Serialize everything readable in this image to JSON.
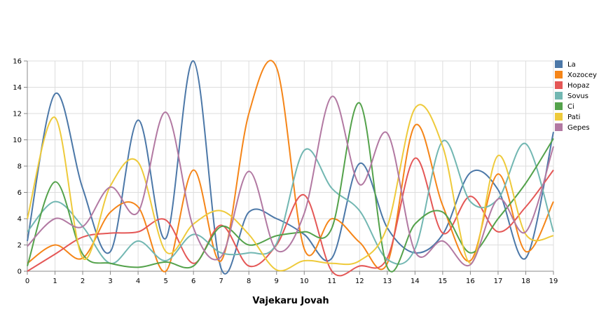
{
  "chart_data": {
    "type": "line",
    "title": "",
    "xlabel": "Vajekaru Jovah",
    "ylabel": "",
    "x": [
      0,
      1,
      2,
      3,
      4,
      5,
      6,
      7,
      8,
      9,
      10,
      11,
      12,
      13,
      14,
      15,
      16,
      17,
      18,
      19
    ],
    "xlim": [
      0,
      19
    ],
    "ylim": [
      0,
      16
    ],
    "xticks": [
      "0",
      "1",
      "2",
      "3",
      "4",
      "5",
      "6",
      "7",
      "8",
      "9",
      "10",
      "11",
      "12",
      "13",
      "14",
      "15",
      "16",
      "17",
      "18",
      "19"
    ],
    "yticks": [
      "0",
      "2",
      "4",
      "6",
      "8",
      "10",
      "12",
      "14",
      "16"
    ],
    "grid": true,
    "legend_position": "right",
    "series": [
      {
        "name": "La",
        "color": "#4c78a8",
        "values": [
          2.3,
          13.5,
          6.3,
          1.5,
          11.5,
          2.5,
          16.0,
          0.2,
          4.5,
          4.0,
          2.8,
          1.0,
          8.2,
          3.3,
          1.4,
          2.8,
          7.5,
          6.2,
          1.0,
          10.6
        ]
      },
      {
        "name": "Xozocey",
        "color": "#f58518",
        "values": [
          0.6,
          2.0,
          1.0,
          4.5,
          4.9,
          0.0,
          7.7,
          0.8,
          12.0,
          15.5,
          1.7,
          4.0,
          2.2,
          0.6,
          11.1,
          5.0,
          0.8,
          7.4,
          1.5,
          5.3
        ]
      },
      {
        "name": "Hopaz",
        "color": "#e45756",
        "values": [
          0.0,
          1.3,
          2.6,
          2.9,
          3.0,
          3.9,
          0.6,
          3.5,
          0.4,
          2.0,
          5.8,
          0.0,
          0.4,
          1.0,
          8.6,
          2.9,
          5.7,
          3.0,
          4.9,
          7.7
        ]
      },
      {
        "name": "Sovus",
        "color": "#72b7b2",
        "values": [
          3.0,
          5.3,
          3.4,
          0.6,
          2.3,
          0.8,
          2.8,
          1.4,
          1.4,
          2.1,
          9.2,
          6.3,
          4.6,
          0.9,
          1.7,
          9.9,
          5.3,
          5.5,
          9.7,
          3.0
        ]
      },
      {
        "name": "Ci",
        "color": "#54a24b",
        "values": [
          0.4,
          6.8,
          1.3,
          0.6,
          0.3,
          0.7,
          0.4,
          3.4,
          2.0,
          2.7,
          3.0,
          3.3,
          12.8,
          0.3,
          3.6,
          4.5,
          1.4,
          4.0,
          6.7,
          10.1
        ]
      },
      {
        "name": "Pati",
        "color": "#eeca3b",
        "values": [
          4.0,
          11.7,
          1.0,
          6.5,
          8.3,
          1.5,
          3.6,
          4.6,
          2.8,
          0.1,
          0.8,
          0.6,
          0.8,
          3.4,
          12.4,
          9.5,
          0.6,
          8.8,
          2.8,
          2.7
        ]
      },
      {
        "name": "Gepes",
        "color": "#b279a2",
        "values": [
          1.9,
          4.0,
          3.4,
          6.4,
          4.5,
          12.1,
          3.3,
          1.1,
          7.6,
          1.6,
          4.4,
          13.3,
          6.6,
          10.5,
          1.5,
          2.3,
          0.5,
          5.5,
          3.0,
          9.5
        ]
      }
    ]
  }
}
